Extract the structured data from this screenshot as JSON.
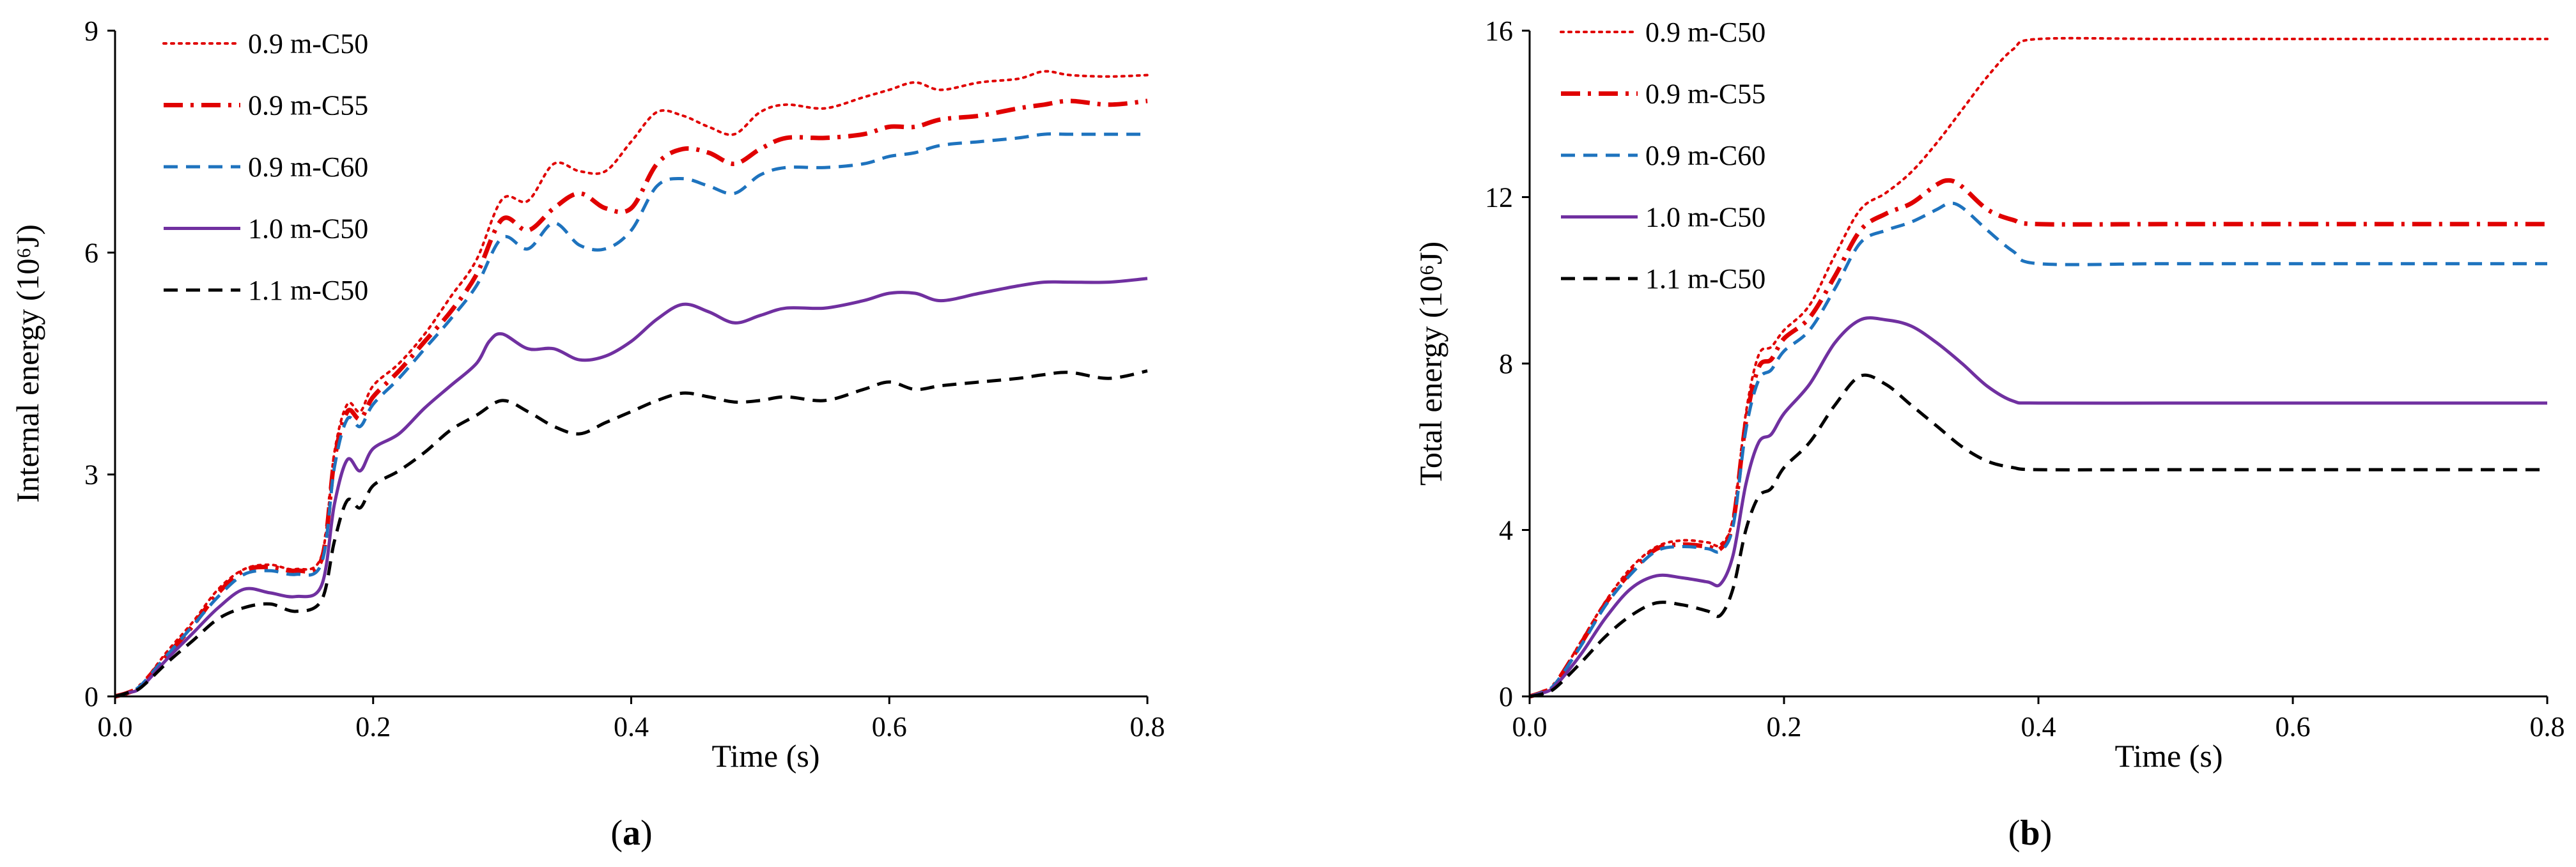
{
  "chart_data": [
    {
      "type": "line",
      "panel_label": "a",
      "xlabel": "Time (s)",
      "ylabel": "Internal energy (10⁶J)",
      "xlim": [
        0,
        0.8
      ],
      "ylim": [
        0,
        9
      ],
      "xticks": [
        "0.0",
        "0.2",
        "0.4",
        "0.6",
        "0.8"
      ],
      "yticks": [
        "0",
        "3",
        "6",
        "9"
      ],
      "legend": "top-left",
      "series": [
        {
          "name": "0.9 m-C50",
          "color": "#e00000",
          "style": "dotted",
          "x": [
            0,
            0.01,
            0.02,
            0.04,
            0.06,
            0.08,
            0.1,
            0.12,
            0.14,
            0.16,
            0.17,
            0.18,
            0.19,
            0.2,
            0.22,
            0.24,
            0.26,
            0.28,
            0.3,
            0.32,
            0.34,
            0.36,
            0.38,
            0.4,
            0.42,
            0.44,
            0.46,
            0.48,
            0.5,
            0.52,
            0.55,
            0.58,
            0.6,
            0.62,
            0.64,
            0.67,
            0.7,
            0.72,
            0.74,
            0.77,
            0.8
          ],
          "y": [
            0,
            0.05,
            0.15,
            0.6,
            1.0,
            1.45,
            1.72,
            1.78,
            1.72,
            1.9,
            3.3,
            3.95,
            3.85,
            4.2,
            4.5,
            4.9,
            5.4,
            5.9,
            6.72,
            6.7,
            7.2,
            7.1,
            7.1,
            7.5,
            7.9,
            7.85,
            7.7,
            7.6,
            7.9,
            8.0,
            7.95,
            8.1,
            8.2,
            8.3,
            8.2,
            8.3,
            8.35,
            8.45,
            8.4,
            8.38,
            8.4
          ]
        },
        {
          "name": "0.9 m-C55",
          "color": "#e00000",
          "style": "dashdot",
          "x": [
            0,
            0.01,
            0.02,
            0.04,
            0.06,
            0.08,
            0.1,
            0.12,
            0.14,
            0.16,
            0.17,
            0.18,
            0.19,
            0.2,
            0.22,
            0.24,
            0.26,
            0.28,
            0.3,
            0.32,
            0.34,
            0.36,
            0.38,
            0.4,
            0.42,
            0.44,
            0.46,
            0.48,
            0.5,
            0.52,
            0.55,
            0.58,
            0.6,
            0.62,
            0.64,
            0.67,
            0.7,
            0.72,
            0.74,
            0.77,
            0.8
          ],
          "y": [
            0,
            0.05,
            0.15,
            0.55,
            0.95,
            1.4,
            1.7,
            1.75,
            1.7,
            1.85,
            3.2,
            3.85,
            3.75,
            4.05,
            4.4,
            4.8,
            5.2,
            5.7,
            6.45,
            6.3,
            6.6,
            6.8,
            6.6,
            6.6,
            7.2,
            7.4,
            7.35,
            7.2,
            7.4,
            7.55,
            7.55,
            7.6,
            7.7,
            7.7,
            7.8,
            7.85,
            7.95,
            8.0,
            8.05,
            8.0,
            8.05
          ]
        },
        {
          "name": "0.9 m-C60",
          "color": "#1e73be",
          "style": "dashed",
          "x": [
            0,
            0.01,
            0.02,
            0.04,
            0.06,
            0.08,
            0.1,
            0.12,
            0.14,
            0.16,
            0.17,
            0.18,
            0.19,
            0.2,
            0.22,
            0.24,
            0.26,
            0.28,
            0.3,
            0.32,
            0.34,
            0.36,
            0.38,
            0.4,
            0.42,
            0.44,
            0.46,
            0.48,
            0.5,
            0.52,
            0.55,
            0.58,
            0.6,
            0.62,
            0.64,
            0.67,
            0.7,
            0.72,
            0.74,
            0.77,
            0.8
          ],
          "y": [
            0,
            0.05,
            0.15,
            0.55,
            0.95,
            1.35,
            1.65,
            1.7,
            1.65,
            1.8,
            3.1,
            3.75,
            3.65,
            3.95,
            4.3,
            4.7,
            5.1,
            5.55,
            6.2,
            6.05,
            6.4,
            6.1,
            6.05,
            6.3,
            6.9,
            7.0,
            6.9,
            6.8,
            7.05,
            7.15,
            7.15,
            7.2,
            7.3,
            7.35,
            7.45,
            7.5,
            7.55,
            7.6,
            7.6,
            7.6,
            7.6
          ]
        },
        {
          "name": "1.0 m-C50",
          "color": "#7030a0",
          "style": "solid",
          "x": [
            0,
            0.01,
            0.02,
            0.04,
            0.06,
            0.08,
            0.1,
            0.12,
            0.14,
            0.16,
            0.17,
            0.18,
            0.19,
            0.2,
            0.22,
            0.24,
            0.26,
            0.28,
            0.29,
            0.3,
            0.32,
            0.34,
            0.36,
            0.38,
            0.4,
            0.42,
            0.44,
            0.46,
            0.48,
            0.5,
            0.52,
            0.55,
            0.58,
            0.6,
            0.62,
            0.64,
            0.67,
            0.7,
            0.72,
            0.74,
            0.77,
            0.8
          ],
          "y": [
            0,
            0.05,
            0.12,
            0.5,
            0.85,
            1.2,
            1.45,
            1.4,
            1.35,
            1.5,
            2.6,
            3.2,
            3.05,
            3.35,
            3.55,
            3.9,
            4.2,
            4.5,
            4.8,
            4.9,
            4.7,
            4.7,
            4.55,
            4.6,
            4.8,
            5.1,
            5.3,
            5.2,
            5.05,
            5.15,
            5.25,
            5.25,
            5.35,
            5.45,
            5.45,
            5.35,
            5.45,
            5.55,
            5.6,
            5.6,
            5.6,
            5.65
          ]
        },
        {
          "name": "1.1 m-C50",
          "color": "#000000",
          "style": "dashed",
          "x": [
            0,
            0.01,
            0.02,
            0.04,
            0.06,
            0.08,
            0.1,
            0.12,
            0.14,
            0.16,
            0.17,
            0.18,
            0.19,
            0.2,
            0.22,
            0.24,
            0.26,
            0.28,
            0.3,
            0.32,
            0.34,
            0.36,
            0.38,
            0.4,
            0.42,
            0.44,
            0.46,
            0.48,
            0.5,
            0.52,
            0.55,
            0.58,
            0.6,
            0.62,
            0.64,
            0.67,
            0.7,
            0.72,
            0.74,
            0.77,
            0.8
          ],
          "y": [
            0,
            0.05,
            0.12,
            0.45,
            0.75,
            1.05,
            1.2,
            1.25,
            1.15,
            1.3,
            2.1,
            2.65,
            2.55,
            2.85,
            3.05,
            3.3,
            3.6,
            3.8,
            4.0,
            3.85,
            3.65,
            3.55,
            3.7,
            3.85,
            4.0,
            4.1,
            4.05,
            3.98,
            4.0,
            4.05,
            4.0,
            4.15,
            4.25,
            4.15,
            4.2,
            4.25,
            4.3,
            4.35,
            4.38,
            4.3,
            4.4
          ]
        }
      ]
    },
    {
      "type": "line",
      "panel_label": "b",
      "xlabel": "Time (s)",
      "ylabel": "Total energy (10⁶J)",
      "xlim": [
        0,
        0.8
      ],
      "ylim": [
        0,
        16
      ],
      "xticks": [
        "0.0",
        "0.2",
        "0.4",
        "0.6",
        "0.8"
      ],
      "yticks": [
        "0",
        "4",
        "8",
        "12",
        "16"
      ],
      "legend": "top-left",
      "series": [
        {
          "name": "0.9 m-C50",
          "color": "#e00000",
          "style": "dotted",
          "x": [
            0,
            0.01,
            0.02,
            0.04,
            0.06,
            0.08,
            0.1,
            0.12,
            0.14,
            0.15,
            0.16,
            0.17,
            0.18,
            0.19,
            0.2,
            0.22,
            0.24,
            0.26,
            0.28,
            0.3,
            0.32,
            0.34,
            0.36,
            0.38,
            0.4,
            0.5,
            0.6,
            0.7,
            0.8
          ],
          "y": [
            0,
            0.1,
            0.3,
            1.3,
            2.3,
            3.1,
            3.6,
            3.75,
            3.7,
            3.65,
            4.3,
            6.8,
            8.2,
            8.4,
            8.8,
            9.4,
            10.6,
            11.7,
            12.1,
            12.6,
            13.3,
            14.1,
            14.9,
            15.55,
            15.8,
            15.8,
            15.8,
            15.8,
            15.8
          ]
        },
        {
          "name": "0.9 m-C55",
          "color": "#e00000",
          "style": "dashdot",
          "x": [
            0,
            0.01,
            0.02,
            0.04,
            0.06,
            0.08,
            0.1,
            0.12,
            0.14,
            0.15,
            0.16,
            0.17,
            0.18,
            0.19,
            0.2,
            0.22,
            0.24,
            0.26,
            0.28,
            0.3,
            0.32,
            0.33,
            0.34,
            0.36,
            0.38,
            0.4,
            0.5,
            0.6,
            0.7,
            0.8
          ],
          "y": [
            0,
            0.1,
            0.3,
            1.25,
            2.25,
            3.0,
            3.55,
            3.65,
            3.6,
            3.55,
            4.2,
            6.6,
            7.9,
            8.1,
            8.6,
            9.1,
            10.1,
            11.2,
            11.6,
            11.85,
            12.3,
            12.4,
            12.25,
            11.7,
            11.45,
            11.35,
            11.35,
            11.35,
            11.35,
            11.35
          ]
        },
        {
          "name": "0.9 m-C60",
          "color": "#1e73be",
          "style": "dashed",
          "x": [
            0,
            0.01,
            0.02,
            0.04,
            0.06,
            0.08,
            0.1,
            0.12,
            0.14,
            0.15,
            0.16,
            0.17,
            0.18,
            0.19,
            0.2,
            0.22,
            0.24,
            0.26,
            0.28,
            0.3,
            0.32,
            0.33,
            0.34,
            0.36,
            0.38,
            0.4,
            0.5,
            0.6,
            0.7,
            0.8
          ],
          "y": [
            0,
            0.1,
            0.3,
            1.2,
            2.2,
            2.95,
            3.5,
            3.6,
            3.55,
            3.5,
            4.1,
            6.4,
            7.6,
            7.85,
            8.3,
            8.8,
            9.8,
            10.9,
            11.2,
            11.4,
            11.7,
            11.85,
            11.75,
            11.2,
            10.7,
            10.4,
            10.4,
            10.4,
            10.4,
            10.4
          ]
        },
        {
          "name": "1.0 m-C50",
          "color": "#7030a0",
          "style": "solid",
          "x": [
            0,
            0.01,
            0.02,
            0.04,
            0.06,
            0.08,
            0.1,
            0.12,
            0.14,
            0.15,
            0.16,
            0.17,
            0.18,
            0.19,
            0.2,
            0.22,
            0.24,
            0.26,
            0.28,
            0.3,
            0.32,
            0.34,
            0.36,
            0.38,
            0.4,
            0.5,
            0.6,
            0.7,
            0.8
          ],
          "y": [
            0,
            0.08,
            0.25,
            1.0,
            1.9,
            2.6,
            2.9,
            2.85,
            2.75,
            2.7,
            3.4,
            5.1,
            6.1,
            6.3,
            6.8,
            7.5,
            8.5,
            9.05,
            9.05,
            8.9,
            8.5,
            8.0,
            7.45,
            7.1,
            7.05,
            7.05,
            7.05,
            7.05,
            7.05
          ]
        },
        {
          "name": "1.1 m-C50",
          "color": "#000000",
          "style": "dashed",
          "x": [
            0,
            0.01,
            0.02,
            0.04,
            0.06,
            0.08,
            0.1,
            0.12,
            0.14,
            0.15,
            0.16,
            0.17,
            0.18,
            0.19,
            0.2,
            0.22,
            0.24,
            0.26,
            0.28,
            0.3,
            0.32,
            0.34,
            0.36,
            0.38,
            0.4,
            0.5,
            0.6,
            0.7,
            0.8
          ],
          "y": [
            0,
            0.06,
            0.2,
            0.8,
            1.45,
            1.95,
            2.25,
            2.2,
            2.05,
            1.95,
            2.6,
            4.0,
            4.8,
            5.0,
            5.5,
            6.1,
            7.0,
            7.7,
            7.5,
            7.0,
            6.5,
            6.0,
            5.65,
            5.5,
            5.45,
            5.45,
            5.45,
            5.45,
            5.45
          ]
        }
      ]
    }
  ]
}
